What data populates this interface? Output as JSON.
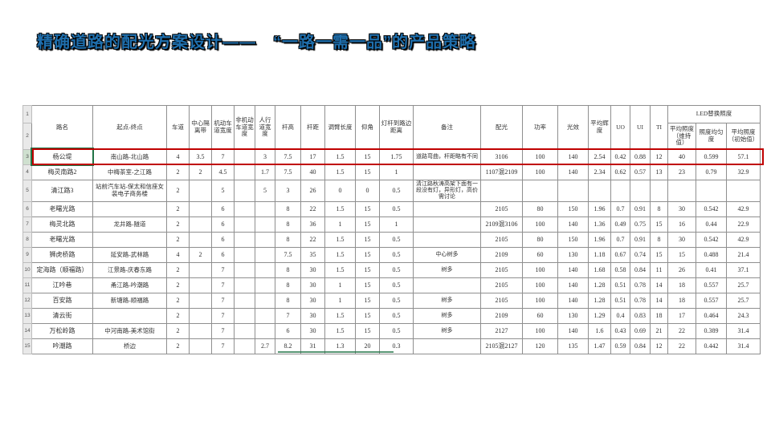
{
  "slide": {
    "title": "精确道路的配光方案设计——　“一路一需一品”的产品策略"
  },
  "colors": {
    "title_blue": "#1f6fad",
    "highlight_red": "#c00000",
    "selection_green": "#217346"
  },
  "table": {
    "gutter": [
      "1",
      "2"
    ],
    "headers": {
      "road": "路名",
      "endpoints": "起点-终点",
      "lanes": "车道",
      "median": "中心隔离带",
      "motor_width": "机动车道宽度",
      "nonmotor_width": "非机动车道宽度",
      "sidewalk_width": "人行道宽度",
      "pole_height": "杆高",
      "pole_spacing": "杆距",
      "arm_length": "调臂长度",
      "tilt": "仰角",
      "pole_to_edge": "灯杆到路边距离",
      "remark": "备注",
      "distribution": "配光",
      "power": "功率",
      "efficacy": "光效",
      "avg_luminance": "平均辉度",
      "uo": "UO",
      "ui": "UI",
      "ti": "TI",
      "led_group": "LED替换照度",
      "led_avg_maintained": "平均照度（维持值）",
      "led_uniformity": "照度均匀度",
      "led_avg_initial": "平均照度（初始值）"
    },
    "rows": [
      {
        "n": "3",
        "hl": true,
        "tall": false,
        "cells": [
          "杨公堤",
          "南山路-北山路",
          "4",
          "3.5",
          "7",
          "",
          "3",
          "7.5",
          "17",
          "1.5",
          "15",
          "1.75",
          "道路弯曲，杆距略有不同",
          "3106",
          "100",
          "140",
          "2.54",
          "0.42",
          "0.88",
          "12",
          "40",
          "0.599",
          "57.1"
        ]
      },
      {
        "n": "4",
        "hl": false,
        "tall": false,
        "cells": [
          "梅灵南路2",
          "中梅茶室-之江路",
          "2",
          "2",
          "4.5",
          "",
          "1.7",
          "7.5",
          "40",
          "1.5",
          "15",
          "1",
          "",
          "1107混2109",
          "100",
          "140",
          "2.34",
          "0.62",
          "0.57",
          "13",
          "23",
          "0.79",
          "32.9"
        ]
      },
      {
        "n": "5",
        "hl": false,
        "tall": true,
        "cells": [
          "清江路3",
          "站前汽车站-保太和信座女装电子商务楼",
          "2",
          "",
          "5",
          "",
          "5",
          "3",
          "26",
          "0",
          "0",
          "0.5",
          "清江路秋涛高架下面有一段没有灯，异形灯，高价需讨论",
          "",
          "",
          "",
          "",
          "",
          "",
          "",
          "",
          "",
          ""
        ]
      },
      {
        "n": "6",
        "hl": false,
        "tall": false,
        "cells": [
          "老曙光路",
          "",
          "2",
          "",
          "6",
          "",
          "",
          "8",
          "22",
          "1.5",
          "15",
          "0.5",
          "",
          "2105",
          "80",
          "150",
          "1.96",
          "0.7",
          "0.91",
          "8",
          "30",
          "0.542",
          "42.9"
        ]
      },
      {
        "n": "7",
        "hl": false,
        "tall": false,
        "cells": [
          "梅灵北路",
          "龙井路-隧道",
          "2",
          "",
          "6",
          "",
          "",
          "8",
          "36",
          "1",
          "15",
          "1",
          "",
          "2109混3106",
          "100",
          "140",
          "1.36",
          "0.49",
          "0.75",
          "15",
          "16",
          "0.44",
          "22.9"
        ]
      },
      {
        "n": "8",
        "hl": false,
        "tall": false,
        "cells": [
          "老曙光路",
          "",
          "2",
          "",
          "6",
          "",
          "",
          "8",
          "22",
          "1.5",
          "15",
          "0.5",
          "",
          "2105",
          "80",
          "150",
          "1.96",
          "0.7",
          "0.91",
          "8",
          "30",
          "0.542",
          "42.9"
        ]
      },
      {
        "n": "9",
        "hl": false,
        "tall": false,
        "cells": [
          "狮虎桥路",
          "延安路-武林路",
          "4",
          "2",
          "6",
          "",
          "",
          "7.5",
          "35",
          "1.5",
          "15",
          "0.5",
          "中心树多",
          "2109",
          "60",
          "130",
          "1.18",
          "0.67",
          "0.74",
          "15",
          "15",
          "0.488",
          "21.4"
        ]
      },
      {
        "n": "10",
        "hl": false,
        "tall": false,
        "cells": [
          "定海路（顺福路）",
          "江景路-庆春东路",
          "2",
          "",
          "7",
          "",
          "",
          "8",
          "30",
          "1.5",
          "15",
          "0.5",
          "树多",
          "2105",
          "100",
          "140",
          "1.68",
          "0.58",
          "0.84",
          "11",
          "26",
          "0.41",
          "37.1"
        ]
      },
      {
        "n": "11",
        "hl": false,
        "tall": false,
        "cells": [
          "江吟巷",
          "甬江路-吟潮路",
          "2",
          "",
          "7",
          "",
          "",
          "8",
          "30",
          "1",
          "15",
          "0.5",
          "",
          "2105",
          "100",
          "140",
          "1.28",
          "0.51",
          "0.78",
          "14",
          "18",
          "0.557",
          "25.7"
        ]
      },
      {
        "n": "12",
        "hl": false,
        "tall": false,
        "cells": [
          "百安路",
          "新塘路-顺福路",
          "2",
          "",
          "7",
          "",
          "",
          "8",
          "30",
          "1",
          "15",
          "0.5",
          "树多",
          "2105",
          "100",
          "140",
          "1.28",
          "0.51",
          "0.78",
          "14",
          "18",
          "0.557",
          "25.7"
        ]
      },
      {
        "n": "13",
        "hl": false,
        "tall": false,
        "cells": [
          "清云街",
          "",
          "2",
          "",
          "7",
          "",
          "",
          "7",
          "30",
          "1.5",
          "15",
          "0.5",
          "树多",
          "2109",
          "60",
          "130",
          "1.29",
          "0.4",
          "0.83",
          "18",
          "17",
          "0.464",
          "24.3"
        ]
      },
      {
        "n": "14",
        "hl": false,
        "tall": false,
        "cells": [
          "万松岭路",
          "中河南路-美术馆街",
          "2",
          "",
          "7",
          "",
          "",
          "6",
          "30",
          "1.5",
          "15",
          "0.5",
          "树多",
          "2127",
          "100",
          "140",
          "1.6",
          "0.43",
          "0.69",
          "21",
          "22",
          "0.389",
          "31.4"
        ]
      },
      {
        "n": "15",
        "hl": false,
        "tall": false,
        "cells": [
          "吟潮路",
          "桥边",
          "2",
          "",
          "7",
          "",
          "2.7",
          "8.2",
          "31",
          "1.3",
          "20",
          "0.3",
          "",
          "2105混2127",
          "120",
          "135",
          "1.47",
          "0.59",
          "0.84",
          "12",
          "22",
          "0.442",
          "31.4"
        ]
      }
    ]
  }
}
